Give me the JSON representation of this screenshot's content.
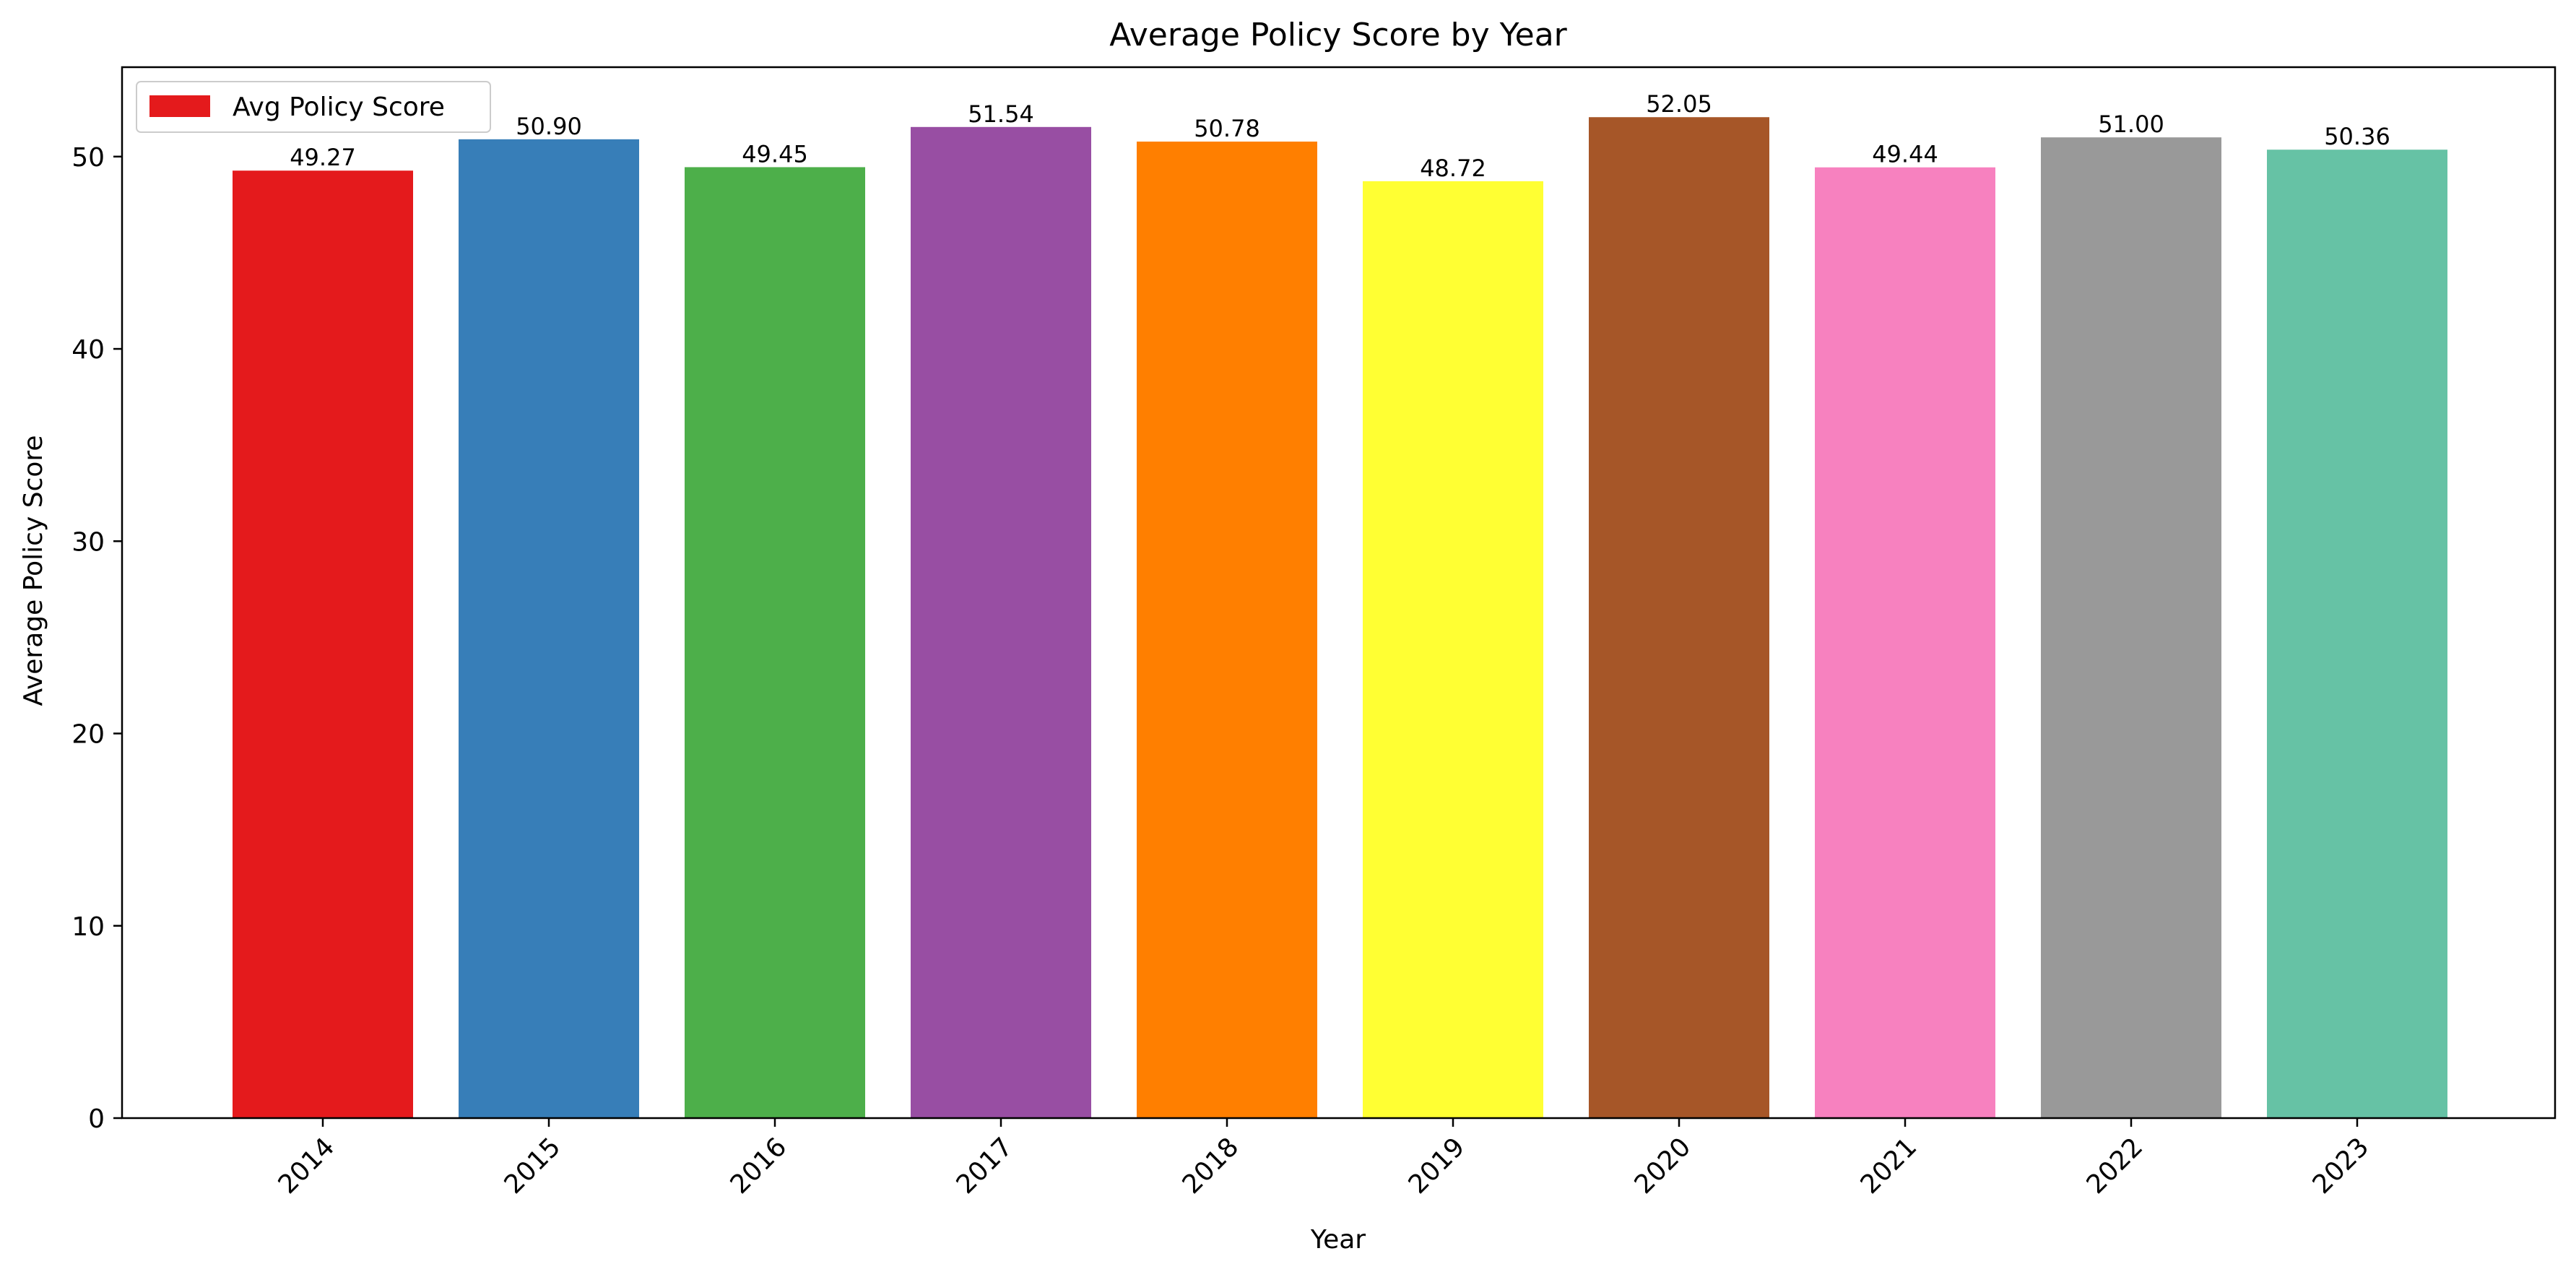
{
  "chart_data": {
    "type": "bar",
    "title": "Average Policy Score by Year",
    "xlabel": "Year",
    "ylabel": "Average Policy Score",
    "categories": [
      "2014",
      "2015",
      "2016",
      "2017",
      "2018",
      "2019",
      "2020",
      "2021",
      "2022",
      "2023"
    ],
    "values": [
      49.27,
      50.9,
      49.45,
      51.54,
      50.78,
      48.72,
      52.05,
      49.44,
      51.0,
      50.36
    ],
    "value_labels": [
      "49.27",
      "50.90",
      "49.45",
      "51.54",
      "50.78",
      "48.72",
      "52.05",
      "49.44",
      "51.00",
      "50.36"
    ],
    "colors": [
      "#e41a1c",
      "#377eb8",
      "#4daf4a",
      "#984ea3",
      "#ff7f00",
      "#ffff33",
      "#a65628",
      "#f781bf",
      "#999999",
      "#66c2a5"
    ],
    "ylim": [
      0,
      54.65
    ],
    "yticks": [
      0,
      10,
      20,
      30,
      40,
      50
    ],
    "ytick_labels": [
      "0",
      "10",
      "20",
      "30",
      "40",
      "50"
    ],
    "xtick_rotation": 45,
    "grid": false,
    "legend": {
      "label": "Avg Policy Score",
      "color": "#e41a1c",
      "placement": "top-left"
    }
  }
}
